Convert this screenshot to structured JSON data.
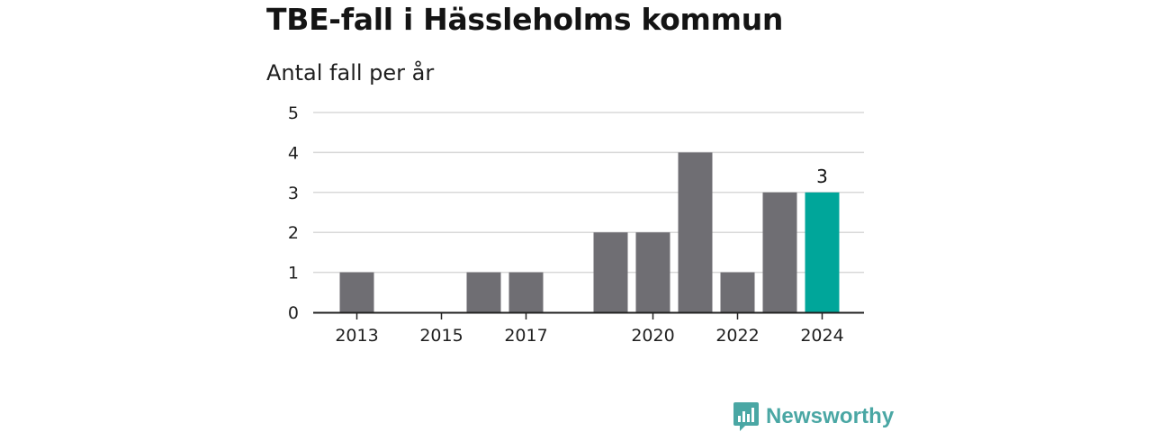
{
  "header": {
    "title": "TBE-fall i Hässleholms kommun",
    "subtitle": "Antal fall per år"
  },
  "brand": {
    "name": "Newsworthy",
    "color": "#4aa7a4",
    "icon": "newsworthy-logo-icon"
  },
  "colors": {
    "bar": "#6f6e73",
    "highlight": "#00a69a",
    "grid": "#d9d9d9",
    "axis": "#222222",
    "text": "#1f1f1f"
  },
  "chart_data": {
    "type": "bar",
    "title": "TBE-fall i Hässleholms kommun",
    "subtitle": "Antal fall per år",
    "xlabel": "",
    "ylabel": "",
    "categories": [
      "2013",
      "2014",
      "2015",
      "2016",
      "2017",
      "2018",
      "2019",
      "2020",
      "2021",
      "2022",
      "2023",
      "2024"
    ],
    "values": [
      1,
      0,
      0,
      1,
      1,
      0,
      2,
      2,
      4,
      1,
      3,
      3
    ],
    "highlight_index": 11,
    "data_labels": [
      {
        "index": 11,
        "text": "3"
      }
    ],
    "xtick_labels": [
      {
        "index": 0,
        "text": "2013"
      },
      {
        "index": 2,
        "text": "2015"
      },
      {
        "index": 4,
        "text": "2017"
      },
      {
        "index": 7,
        "text": "2020"
      },
      {
        "index": 9,
        "text": "2022"
      },
      {
        "index": 11,
        "text": "2024"
      }
    ],
    "yticks": [
      0,
      1,
      2,
      3,
      4,
      5
    ],
    "ylim": [
      0,
      5
    ],
    "grid": true,
    "legend": "none"
  }
}
